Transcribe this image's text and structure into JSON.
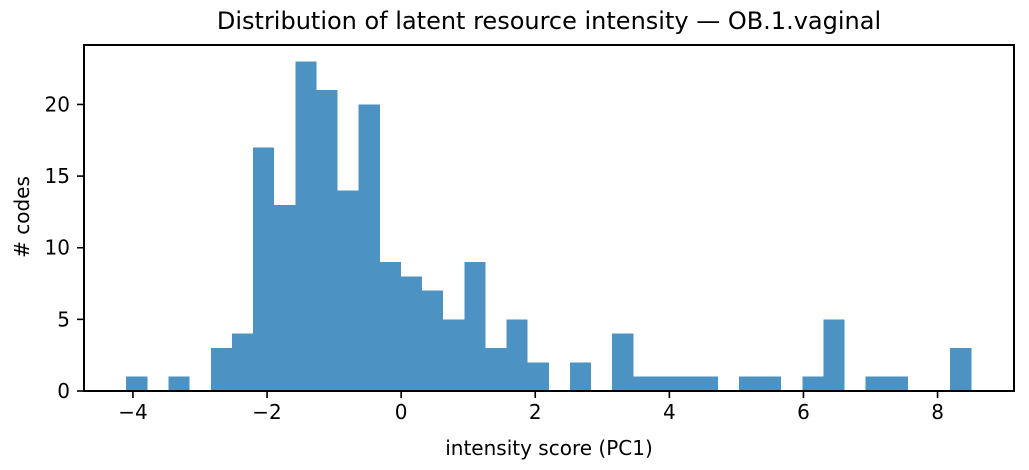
{
  "chart_data": {
    "type": "bar",
    "subtype": "histogram",
    "title": "Distribution of latent resource intensity — OB.1.vaginal",
    "xlabel": "intensity score (PC1)",
    "ylabel": "# codes",
    "bar_color": "#4c92c3",
    "bin_start": -4.1,
    "bin_width": 0.3151,
    "counts": [
      1,
      0,
      1,
      0,
      3,
      4,
      17,
      13,
      23,
      21,
      14,
      20,
      9,
      8,
      7,
      5,
      9,
      3,
      5,
      2,
      0,
      2,
      0,
      4,
      1,
      1,
      1,
      1,
      0,
      1,
      1,
      0,
      1,
      5,
      0,
      1,
      1,
      0,
      0,
      3
    ],
    "x_ticks": [
      -4,
      -2,
      0,
      2,
      4,
      6,
      8
    ],
    "y_ticks": [
      0,
      5,
      10,
      15,
      20
    ],
    "xlim": [
      -4.73,
      9.14
    ],
    "ylim": [
      0,
      24.15
    ],
    "grid": false,
    "legend": null
  }
}
